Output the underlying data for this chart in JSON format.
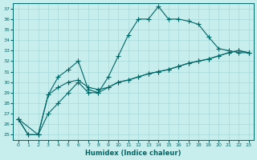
{
  "xlabel": "Humidex (Indice chaleur)",
  "bg_color": "#c8eded",
  "grid_color": "#a8d8d8",
  "line_color": "#006666",
  "marker": "+",
  "markersize": 4,
  "linewidth": 0.8,
  "xlim": [
    -0.5,
    23.5
  ],
  "ylim": [
    24.5,
    37.5
  ],
  "xticks": [
    0,
    1,
    2,
    3,
    4,
    5,
    6,
    7,
    8,
    9,
    10,
    11,
    12,
    13,
    14,
    15,
    16,
    17,
    18,
    19,
    20,
    21,
    22,
    23
  ],
  "yticks": [
    25,
    26,
    27,
    28,
    29,
    30,
    31,
    32,
    33,
    34,
    35,
    36,
    37
  ],
  "line1_x": [
    0,
    1,
    2,
    3,
    4,
    5,
    6,
    7,
    8,
    9,
    10,
    11,
    12,
    13,
    14,
    15,
    16,
    17,
    18,
    19,
    20,
    21,
    22,
    23
  ],
  "line1_y": [
    26.5,
    25.0,
    25.0,
    28.8,
    30.5,
    31.2,
    32.0,
    29.3,
    29.0,
    30.5,
    32.5,
    34.5,
    36.0,
    36.0,
    37.2,
    36.0,
    36.0,
    35.8,
    35.5,
    34.3,
    33.2,
    33.0,
    32.8,
    32.8
  ],
  "line2_x": [
    0,
    2,
    3,
    4,
    5,
    6,
    7,
    8,
    9,
    10,
    11,
    12,
    13,
    14,
    15,
    16,
    17,
    18,
    19,
    20,
    21,
    22,
    23
  ],
  "line2_y": [
    26.5,
    25.0,
    28.8,
    29.5,
    30.0,
    30.2,
    29.5,
    29.3,
    29.5,
    30.0,
    30.2,
    30.5,
    30.8,
    31.0,
    31.2,
    31.5,
    31.8,
    32.0,
    32.2,
    32.5,
    32.8,
    33.0,
    32.8
  ],
  "line3_x": [
    0,
    1,
    2,
    3,
    4,
    5,
    6,
    7,
    8,
    9,
    10,
    11,
    12,
    13,
    14,
    15,
    16,
    17,
    18,
    19,
    20,
    21,
    22,
    23
  ],
  "line3_y": [
    26.5,
    25.0,
    25.0,
    27.0,
    28.0,
    29.0,
    30.0,
    29.0,
    29.0,
    29.5,
    30.0,
    30.2,
    30.5,
    30.8,
    31.0,
    31.2,
    31.5,
    31.8,
    32.0,
    32.2,
    32.5,
    32.8,
    33.0,
    32.8
  ]
}
